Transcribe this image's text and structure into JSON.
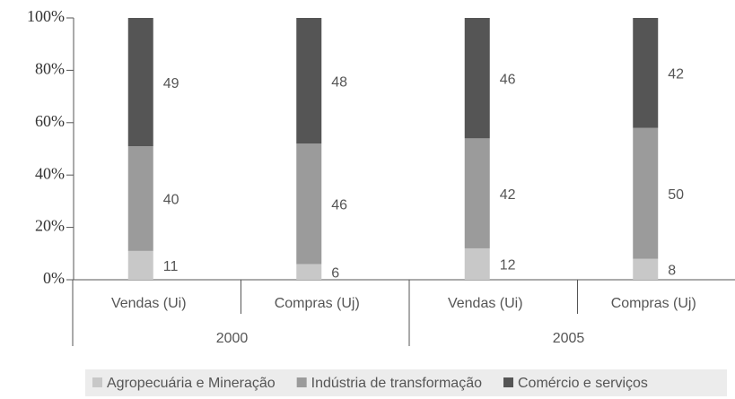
{
  "chart_data": {
    "type": "stacked_bar",
    "categories": [
      "Vendas (Ui)",
      "Compras (Uj)",
      "Vendas (Ui)",
      "Compras (Uj)"
    ],
    "groups": [
      "2000",
      "2005"
    ],
    "series": [
      {
        "name": "Agropecuária e Mineração",
        "color": "#c8c8c8",
        "values": [
          11,
          6,
          12,
          8
        ]
      },
      {
        "name": "Indústria de transformação",
        "color": "#9b9b9b",
        "values": [
          40,
          46,
          42,
          50
        ]
      },
      {
        "name": "Comércio e serviços",
        "color": "#555555",
        "values": [
          49,
          48,
          46,
          42
        ]
      }
    ],
    "ylim": [
      0,
      100
    ],
    "yticks": [
      {
        "value": 0,
        "label": "0%"
      },
      {
        "value": 20,
        "label": "20%"
      },
      {
        "value": 40,
        "label": "40%"
      },
      {
        "value": 60,
        "label": "60%"
      },
      {
        "value": 80,
        "label": "80%"
      },
      {
        "value": 100,
        "label": "100%"
      }
    ],
    "legend": "bottom"
  }
}
